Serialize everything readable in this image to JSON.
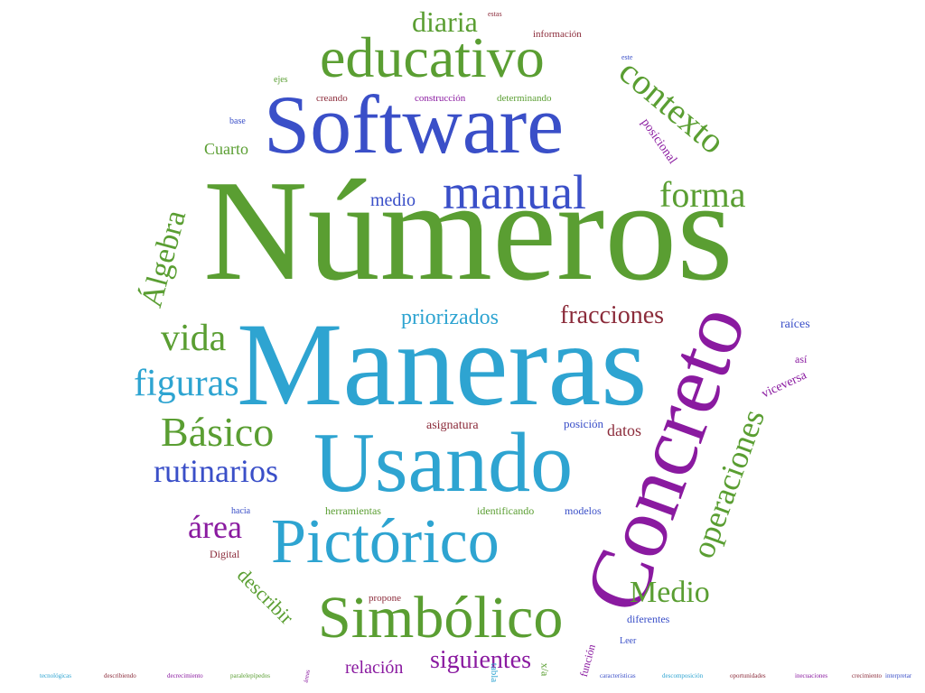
{
  "word_cloud": {
    "colors": {
      "green": "#5a9e32",
      "blue": "#3a4fc8",
      "cyan": "#2ea4d1",
      "purple": "#8a1aa0",
      "maroon": "#8b2b3a"
    },
    "words": [
      {
        "text": "Números",
        "color": "green"
      },
      {
        "text": "Maneras",
        "color": "cyan"
      },
      {
        "text": "Usando",
        "color": "cyan"
      },
      {
        "text": "Concreto",
        "color": "purple"
      },
      {
        "text": "Software",
        "color": "blue"
      },
      {
        "text": "Pictórico",
        "color": "cyan"
      },
      {
        "text": "Simbólico",
        "color": "green"
      },
      {
        "text": "educativo",
        "color": "green"
      },
      {
        "text": "manual",
        "color": "blue"
      },
      {
        "text": "forma",
        "color": "green"
      },
      {
        "text": "contexto",
        "color": "green"
      },
      {
        "text": "Básico",
        "color": "green"
      },
      {
        "text": "operaciones",
        "color": "green"
      },
      {
        "text": "figuras",
        "color": "cyan"
      },
      {
        "text": "vida",
        "color": "green"
      },
      {
        "text": "rutinarios",
        "color": "blue"
      },
      {
        "text": "Álgebra",
        "color": "green"
      },
      {
        "text": "fracciones",
        "color": "maroon"
      },
      {
        "text": "priorizados",
        "color": "cyan"
      },
      {
        "text": "Medio",
        "color": "green"
      },
      {
        "text": "siguientes",
        "color": "purple"
      },
      {
        "text": "área",
        "color": "purple"
      },
      {
        "text": "diaria",
        "color": "green"
      },
      {
        "text": "medio",
        "color": "blue"
      },
      {
        "text": "relación",
        "color": "purple"
      },
      {
        "text": "describir",
        "color": "green"
      },
      {
        "text": "Cuarto",
        "color": "green"
      },
      {
        "text": "datos",
        "color": "maroon"
      },
      {
        "text": "raíces",
        "color": "blue"
      },
      {
        "text": "viceversa",
        "color": "purple"
      },
      {
        "text": "posicional",
        "color": "purple"
      },
      {
        "text": "asignatura",
        "color": "maroon"
      },
      {
        "text": "posición",
        "color": "blue"
      },
      {
        "text": "herramientas",
        "color": "green"
      },
      {
        "text": "identificando",
        "color": "green"
      },
      {
        "text": "modelos",
        "color": "blue"
      },
      {
        "text": "diferentes",
        "color": "blue"
      },
      {
        "text": "creando",
        "color": "maroon"
      },
      {
        "text": "construcción",
        "color": "purple"
      },
      {
        "text": "determinando",
        "color": "green"
      },
      {
        "text": "información",
        "color": "maroon"
      },
      {
        "text": "Digital",
        "color": "maroon"
      },
      {
        "text": "propone",
        "color": "maroon"
      },
      {
        "text": "función",
        "color": "purple"
      },
      {
        "text": "tabla",
        "color": "cyan"
      },
      {
        "text": "x/a",
        "color": "green"
      },
      {
        "text": "hacia",
        "color": "blue"
      },
      {
        "text": "así",
        "color": "purple"
      },
      {
        "text": "Leer",
        "color": "blue"
      },
      {
        "text": "base",
        "color": "blue"
      },
      {
        "text": "ejes",
        "color": "green"
      },
      {
        "text": "estas",
        "color": "maroon"
      },
      {
        "text": "este",
        "color": "blue"
      },
      {
        "text": "tecnológicas",
        "color": "cyan"
      },
      {
        "text": "describiendo",
        "color": "maroon"
      },
      {
        "text": "decrecimiento",
        "color": "purple"
      },
      {
        "text": "paralelepípedos",
        "color": "green"
      },
      {
        "text": "características",
        "color": "blue"
      },
      {
        "text": "descomposición",
        "color": "cyan"
      },
      {
        "text": "oportunidades",
        "color": "maroon"
      },
      {
        "text": "inecuaciones",
        "color": "purple"
      },
      {
        "text": "crecimiento",
        "color": "maroon"
      },
      {
        "text": "interpretar",
        "color": "blue"
      },
      {
        "text": "áreas",
        "color": "purple"
      }
    ]
  }
}
